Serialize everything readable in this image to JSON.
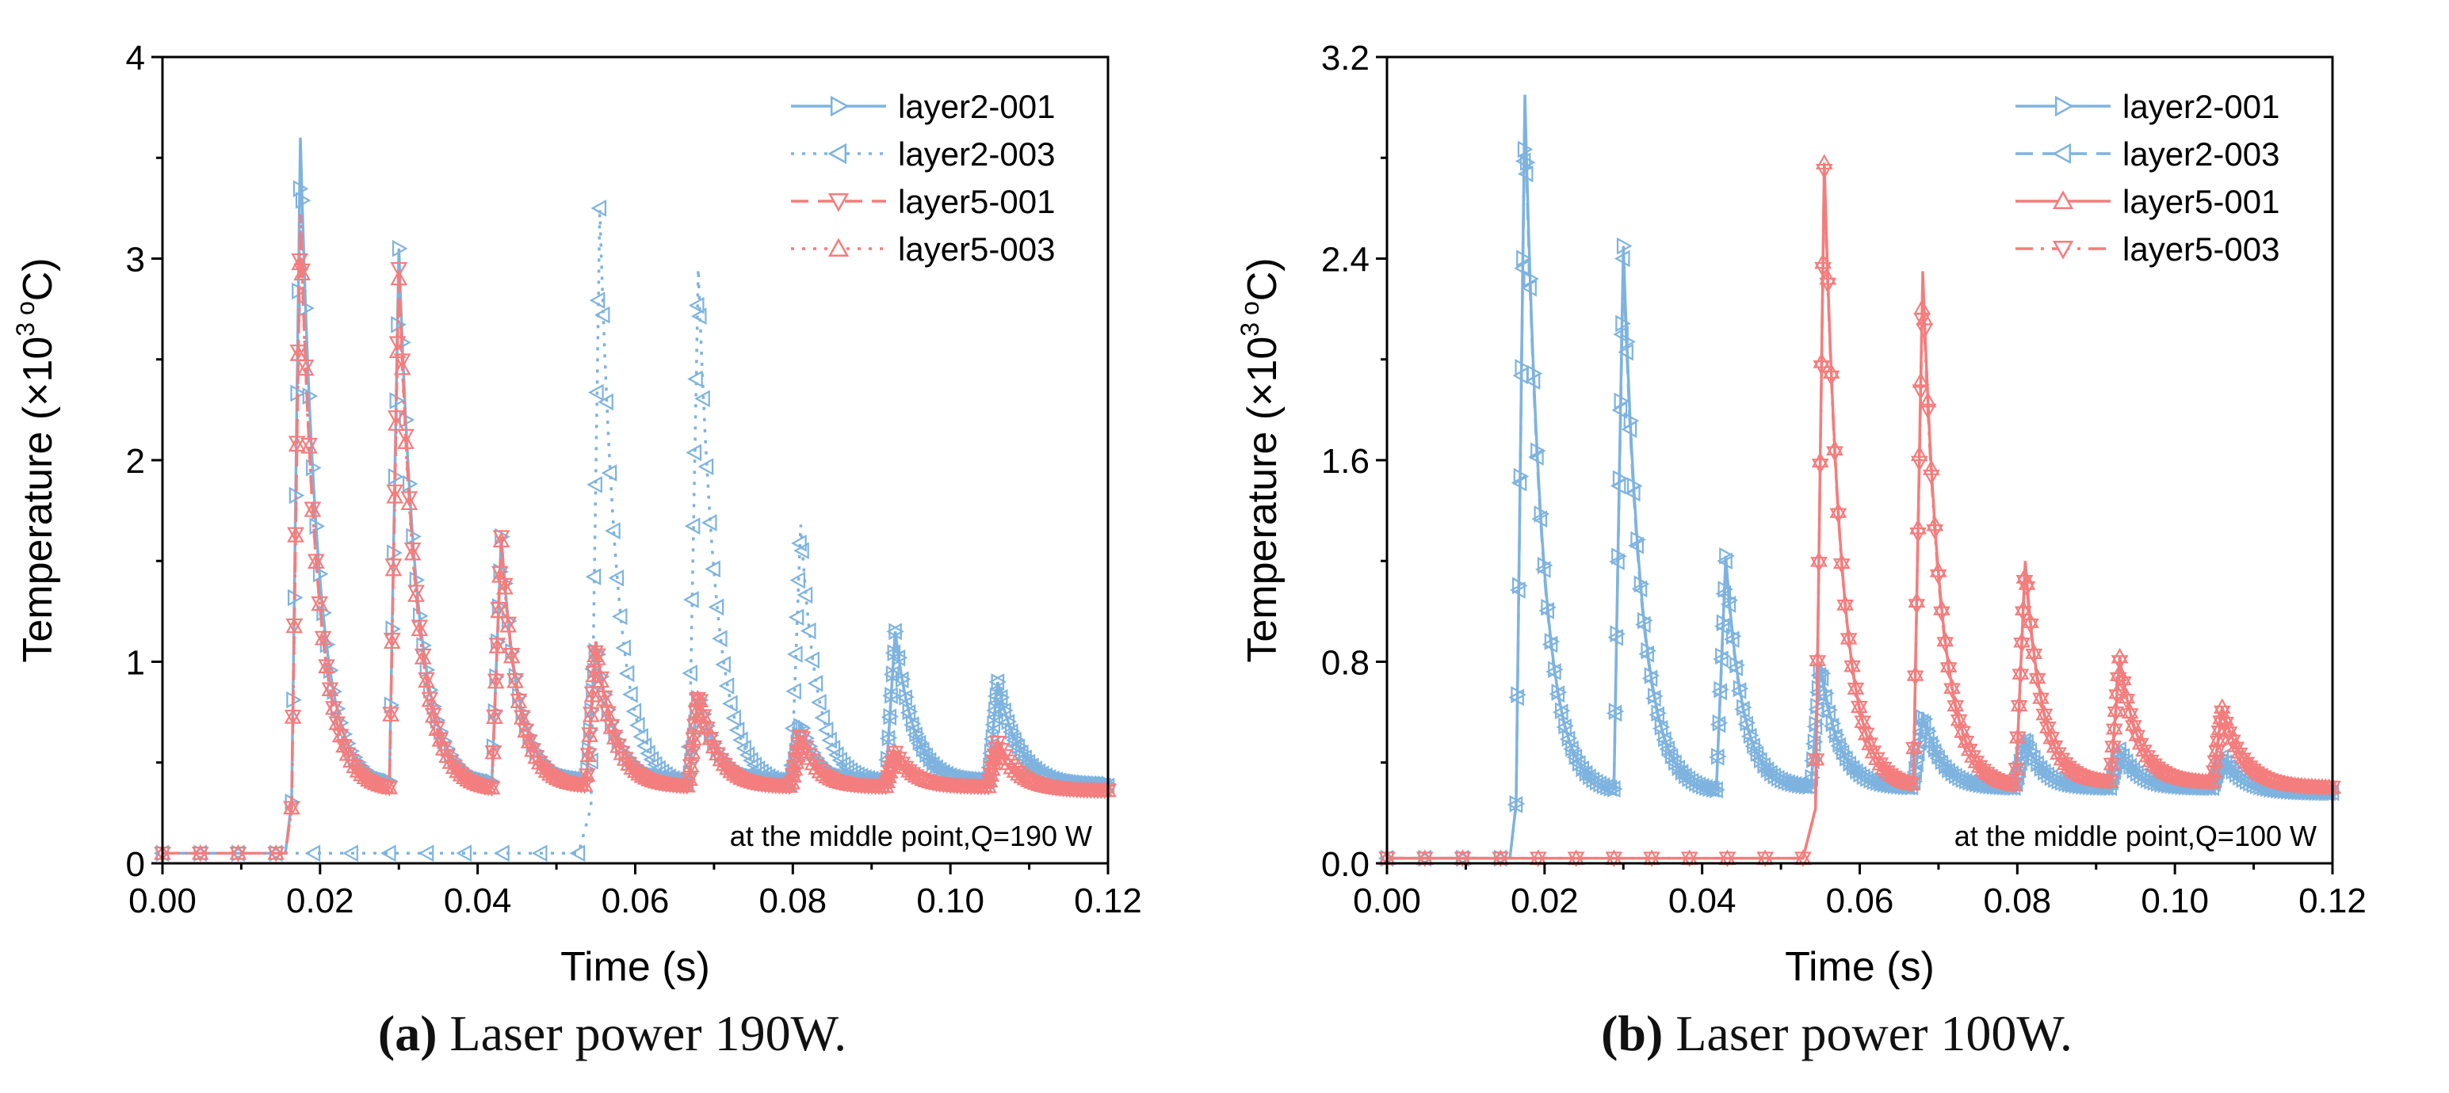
{
  "colors": {
    "blue": "#7eb3df",
    "red": "#f47d7d",
    "axis": "#000000"
  },
  "chart_data": [
    {
      "type": "line",
      "panel_letter": "a",
      "caption_label": "(a)",
      "caption_text": "Laser power 190W.",
      "xlabel": "Time (s)",
      "ylabel_main": "Temperature (×10",
      "ylabel_sup": "3 o",
      "ylabel_end": "C)",
      "xlim": [
        0,
        0.12
      ],
      "ylim": [
        0,
        4
      ],
      "xticks": [
        "0.00",
        "0.02",
        "0.04",
        "0.06",
        "0.08",
        "0.10",
        "0.12"
      ],
      "yticks": [
        "0",
        "1",
        "2",
        "3",
        "4"
      ],
      "annotation": "at the middle point,Q=190 W",
      "legend_position": "top-right",
      "series": [
        {
          "name": "layer2-001",
          "color": "blue",
          "marker": "triangle-right",
          "dash": "solid",
          "base": 0.05,
          "t_start": 0.016,
          "peaks": [
            [
              0.0175,
              3.6
            ],
            [
              0.03,
              3.05
            ],
            [
              0.043,
              1.62
            ],
            [
              0.055,
              1.1
            ],
            [
              0.068,
              0.85
            ],
            [
              0.081,
              0.7
            ],
            [
              0.093,
              1.15
            ],
            [
              0.106,
              0.9
            ]
          ],
          "end": 0.12,
          "end_value": 0.39
        },
        {
          "name": "layer2-003",
          "color": "blue",
          "marker": "triangle-left",
          "dash": "dotted",
          "base": 0.05,
          "t_start": 0.053,
          "peaks": [
            [
              0.0555,
              3.25
            ],
            [
              0.068,
              2.95
            ],
            [
              0.081,
              1.68
            ],
            [
              0.093,
              1.15
            ],
            [
              0.106,
              0.9
            ]
          ],
          "end": 0.12,
          "end_value": 0.38
        },
        {
          "name": "layer5-001",
          "color": "red",
          "marker": "triangle-down",
          "dash": "dashed",
          "base": 0.05,
          "t_start": 0.016,
          "peaks": [
            [
              0.0175,
              3.22
            ],
            [
              0.03,
              2.95
            ],
            [
              0.043,
              1.62
            ],
            [
              0.055,
              1.1
            ],
            [
              0.068,
              0.85
            ],
            [
              0.081,
              0.65
            ],
            [
              0.093,
              0.55
            ],
            [
              0.106,
              0.6
            ]
          ],
          "end": 0.12,
          "end_value": 0.36
        },
        {
          "name": "layer5-003",
          "color": "red",
          "marker": "triangle-up",
          "dash": "dotted",
          "base": 0.05,
          "t_start": 0.016,
          "peaks": [
            [
              0.0175,
              3.2
            ],
            [
              0.03,
              2.9
            ],
            [
              0.043,
              1.6
            ],
            [
              0.055,
              1.08
            ],
            [
              0.068,
              0.85
            ],
            [
              0.081,
              0.62
            ],
            [
              0.093,
              0.55
            ],
            [
              0.106,
              0.58
            ]
          ],
          "end": 0.12,
          "end_value": 0.36
        }
      ]
    },
    {
      "type": "line",
      "panel_letter": "b",
      "caption_label": "(b)",
      "caption_text": "Laser power 100W.",
      "xlabel": "Time (s)",
      "ylabel_main": "Temperature (×10",
      "ylabel_sup": "3 o",
      "ylabel_end": "C)",
      "xlim": [
        0,
        0.12
      ],
      "ylim": [
        0,
        3.2
      ],
      "xticks": [
        "0.00",
        "0.02",
        "0.04",
        "0.06",
        "0.08",
        "0.10",
        "0.12"
      ],
      "yticks": [
        "0.0",
        "0.8",
        "1.6",
        "2.4",
        "3.2"
      ],
      "annotation": "at the middle point,Q=100 W",
      "legend_position": "top-right",
      "series": [
        {
          "name": "layer2-001",
          "color": "blue",
          "marker": "triangle-right",
          "dash": "solid",
          "base": 0.02,
          "t_start": 0.016,
          "peaks": [
            [
              0.0175,
              3.05
            ],
            [
              0.03,
              2.45
            ],
            [
              0.043,
              1.22
            ],
            [
              0.055,
              0.8
            ],
            [
              0.068,
              0.6
            ],
            [
              0.081,
              0.5
            ],
            [
              0.093,
              0.45
            ],
            [
              0.106,
              0.42
            ]
          ],
          "end": 0.12,
          "end_value": 0.28
        },
        {
          "name": "layer2-003",
          "color": "blue",
          "marker": "triangle-left",
          "dash": "dashed",
          "base": 0.02,
          "t_start": 0.016,
          "peaks": [
            [
              0.0175,
              3.0
            ],
            [
              0.03,
              2.4
            ],
            [
              0.043,
              1.2
            ],
            [
              0.055,
              0.78
            ],
            [
              0.068,
              0.58
            ],
            [
              0.081,
              0.5
            ],
            [
              0.093,
              0.45
            ],
            [
              0.106,
              0.42
            ]
          ],
          "end": 0.12,
          "end_value": 0.28
        },
        {
          "name": "layer5-001",
          "color": "red",
          "marker": "triangle-up",
          "dash": "solid",
          "base": 0.02,
          "t_start": 0.053,
          "peaks": [
            [
              0.0555,
              2.78
            ],
            [
              0.068,
              2.35
            ],
            [
              0.081,
              1.2
            ],
            [
              0.093,
              0.82
            ],
            [
              0.106,
              0.62
            ]
          ],
          "end": 0.12,
          "end_value": 0.3
        },
        {
          "name": "layer5-003",
          "color": "red",
          "marker": "triangle-down",
          "dash": "dashdot",
          "base": 0.02,
          "t_start": 0.053,
          "peaks": [
            [
              0.0555,
              2.75
            ],
            [
              0.068,
              2.3
            ],
            [
              0.081,
              1.18
            ],
            [
              0.093,
              0.8
            ],
            [
              0.106,
              0.6
            ]
          ],
          "end": 0.12,
          "end_value": 0.3
        }
      ]
    }
  ]
}
